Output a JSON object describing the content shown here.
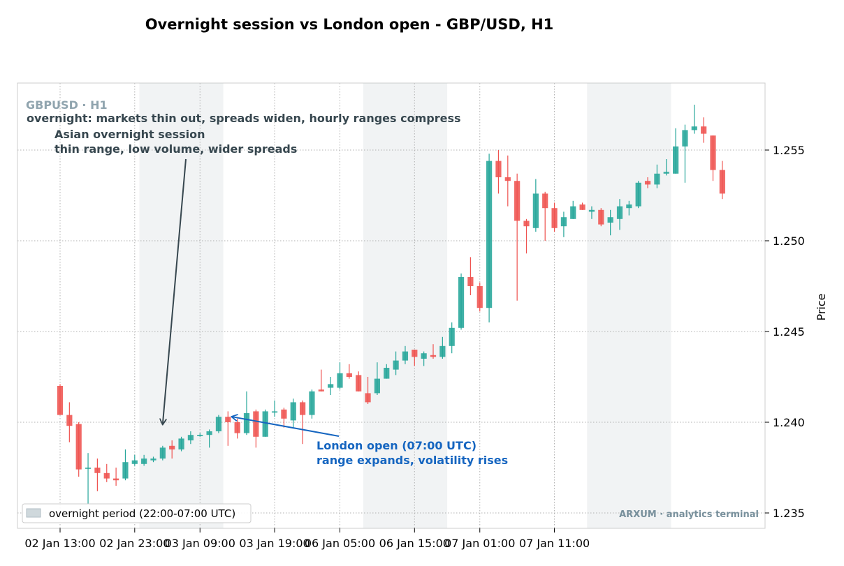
{
  "chart_data": {
    "type": "candlestick",
    "title": "Overnight session vs London open - GBP/USD, H1",
    "symbol_label": "GBPUSD · H1",
    "subtitle_note": "overnight: markets thin out, spreads widen, hourly ranges compress",
    "ylabel": "Price",
    "ylim": [
      1.2342,
      1.2584
    ],
    "yticks": [
      {
        "value": 1.235,
        "label": "1.235"
      },
      {
        "value": 1.24,
        "label": "1.240"
      },
      {
        "value": 1.245,
        "label": "1.245"
      },
      {
        "value": 1.25,
        "label": "1.250"
      },
      {
        "value": 1.255,
        "label": "1.255"
      }
    ],
    "xticks": [
      {
        "index": 0,
        "label": "02 Jan 13:00"
      },
      {
        "index": 8,
        "label": "02 Jan 23:00"
      },
      {
        "index": 15,
        "label": "03 Jan 09:00"
      },
      {
        "index": 23,
        "label": "03 Jan 19:00"
      },
      {
        "index": 30,
        "label": "06 Jan 05:00"
      },
      {
        "index": 38,
        "label": "06 Jan 15:00"
      },
      {
        "index": 45,
        "label": "07 Jan 01:00"
      },
      {
        "index": 53,
        "label": "07 Jan 11:00"
      }
    ],
    "grid": true,
    "colors": {
      "up": "#26a69a",
      "down": "#ef5350",
      "overnight": "#cfd8dc",
      "annotation_dark": "#37474f",
      "annotation_blue": "#1565c0"
    },
    "overnight_periods": [
      {
        "start": 8.5,
        "end": 17.5
      },
      {
        "start": 32.5,
        "end": 41.5
      },
      {
        "start": 56.5,
        "end": 65.5
      }
    ],
    "candles": [
      {
        "o": 1.242,
        "h": 1.2421,
        "l": 1.2404,
        "c": 1.2404
      },
      {
        "o": 1.2404,
        "h": 1.2411,
        "l": 1.2389,
        "c": 1.2398
      },
      {
        "o": 1.2399,
        "h": 1.24,
        "l": 1.237,
        "c": 1.2374
      },
      {
        "o": 1.2375,
        "h": 1.2383,
        "l": 1.2355,
        "c": 1.2375
      },
      {
        "o": 1.2375,
        "h": 1.238,
        "l": 1.2362,
        "c": 1.2372
      },
      {
        "o": 1.2372,
        "h": 1.2377,
        "l": 1.2367,
        "c": 1.2369
      },
      {
        "o": 1.2369,
        "h": 1.2375,
        "l": 1.2365,
        "c": 1.2368
      },
      {
        "o": 1.2369,
        "h": 1.2385,
        "l": 1.2368,
        "c": 1.2378
      },
      {
        "o": 1.2377,
        "h": 1.2382,
        "l": 1.2376,
        "c": 1.2379
      },
      {
        "o": 1.2377,
        "h": 1.2382,
        "l": 1.2376,
        "c": 1.238
      },
      {
        "o": 1.2379,
        "h": 1.2381,
        "l": 1.2378,
        "c": 1.238
      },
      {
        "o": 1.238,
        "h": 1.2387,
        "l": 1.2379,
        "c": 1.2386
      },
      {
        "o": 1.2387,
        "h": 1.239,
        "l": 1.238,
        "c": 1.2385
      },
      {
        "o": 1.2385,
        "h": 1.2392,
        "l": 1.2384,
        "c": 1.2391
      },
      {
        "o": 1.239,
        "h": 1.2395,
        "l": 1.2388,
        "c": 1.2393
      },
      {
        "o": 1.2393,
        "h": 1.2394,
        "l": 1.2392,
        "c": 1.2393
      },
      {
        "o": 1.2393,
        "h": 1.2396,
        "l": 1.2386,
        "c": 1.2395
      },
      {
        "o": 1.2395,
        "h": 1.2404,
        "l": 1.2394,
        "c": 1.2403
      },
      {
        "o": 1.2403,
        "h": 1.2406,
        "l": 1.2387,
        "c": 1.24
      },
      {
        "o": 1.24,
        "h": 1.2402,
        "l": 1.2391,
        "c": 1.2394
      },
      {
        "o": 1.2394,
        "h": 1.2417,
        "l": 1.2393,
        "c": 1.2405
      },
      {
        "o": 1.2406,
        "h": 1.2407,
        "l": 1.2386,
        "c": 1.2392
      },
      {
        "o": 1.2392,
        "h": 1.2407,
        "l": 1.2392,
        "c": 1.2406
      },
      {
        "o": 1.2406,
        "h": 1.2412,
        "l": 1.2403,
        "c": 1.2406
      },
      {
        "o": 1.2407,
        "h": 1.2408,
        "l": 1.2397,
        "c": 1.2402
      },
      {
        "o": 1.2401,
        "h": 1.2413,
        "l": 1.2397,
        "c": 1.2411
      },
      {
        "o": 1.2411,
        "h": 1.2412,
        "l": 1.2388,
        "c": 1.2404
      },
      {
        "o": 1.2404,
        "h": 1.2418,
        "l": 1.2402,
        "c": 1.2417
      },
      {
        "o": 1.2418,
        "h": 1.2429,
        "l": 1.2417,
        "c": 1.2417
      },
      {
        "o": 1.2419,
        "h": 1.2425,
        "l": 1.2415,
        "c": 1.2421
      },
      {
        "o": 1.2419,
        "h": 1.2433,
        "l": 1.2418,
        "c": 1.2427
      },
      {
        "o": 1.2427,
        "h": 1.2432,
        "l": 1.2424,
        "c": 1.2425
      },
      {
        "o": 1.2426,
        "h": 1.2428,
        "l": 1.2417,
        "c": 1.2417
      },
      {
        "o": 1.2416,
        "h": 1.2425,
        "l": 1.241,
        "c": 1.2411
      },
      {
        "o": 1.2416,
        "h": 1.2433,
        "l": 1.2415,
        "c": 1.2424
      },
      {
        "o": 1.2424,
        "h": 1.2432,
        "l": 1.2424,
        "c": 1.243
      },
      {
        "o": 1.2429,
        "h": 1.2439,
        "l": 1.2426,
        "c": 1.2434
      },
      {
        "o": 1.2434,
        "h": 1.2442,
        "l": 1.2432,
        "c": 1.2439
      },
      {
        "o": 1.244,
        "h": 1.244,
        "l": 1.2431,
        "c": 1.2436
      },
      {
        "o": 1.2435,
        "h": 1.2439,
        "l": 1.2431,
        "c": 1.2438
      },
      {
        "o": 1.2437,
        "h": 1.2443,
        "l": 1.2435,
        "c": 1.2436
      },
      {
        "o": 1.2436,
        "h": 1.2447,
        "l": 1.2435,
        "c": 1.2442
      },
      {
        "o": 1.2442,
        "h": 1.2455,
        "l": 1.2438,
        "c": 1.2452
      },
      {
        "o": 1.2452,
        "h": 1.2482,
        "l": 1.2451,
        "c": 1.248
      },
      {
        "o": 1.248,
        "h": 1.2491,
        "l": 1.247,
        "c": 1.2475
      },
      {
        "o": 1.2475,
        "h": 1.2477,
        "l": 1.2461,
        "c": 1.2463
      },
      {
        "o": 1.2463,
        "h": 1.2548,
        "l": 1.2455,
        "c": 1.2544
      },
      {
        "o": 1.2544,
        "h": 1.255,
        "l": 1.2526,
        "c": 1.2535
      },
      {
        "o": 1.2535,
        "h": 1.2547,
        "l": 1.2519,
        "c": 1.2533
      },
      {
        "o": 1.2533,
        "h": 1.2537,
        "l": 1.2467,
        "c": 1.2511
      },
      {
        "o": 1.2511,
        "h": 1.2512,
        "l": 1.2493,
        "c": 1.2508
      },
      {
        "o": 1.2507,
        "h": 1.2534,
        "l": 1.2505,
        "c": 1.2526
      },
      {
        "o": 1.2526,
        "h": 1.2527,
        "l": 1.25,
        "c": 1.2518
      },
      {
        "o": 1.2518,
        "h": 1.2521,
        "l": 1.2505,
        "c": 1.2507
      },
      {
        "o": 1.2508,
        "h": 1.2516,
        "l": 1.2502,
        "c": 1.2513
      },
      {
        "o": 1.2512,
        "h": 1.2522,
        "l": 1.2512,
        "c": 1.2519
      },
      {
        "o": 1.252,
        "h": 1.2521,
        "l": 1.2517,
        "c": 1.2517
      },
      {
        "o": 1.2516,
        "h": 1.2519,
        "l": 1.2512,
        "c": 1.2517
      },
      {
        "o": 1.2517,
        "h": 1.2518,
        "l": 1.2508,
        "c": 1.2509
      },
      {
        "o": 1.251,
        "h": 1.2517,
        "l": 1.2503,
        "c": 1.2513
      },
      {
        "o": 1.2512,
        "h": 1.2523,
        "l": 1.2506,
        "c": 1.2519
      },
      {
        "o": 1.2518,
        "h": 1.2522,
        "l": 1.2514,
        "c": 1.252
      },
      {
        "o": 1.2519,
        "h": 1.2533,
        "l": 1.2518,
        "c": 1.2532
      },
      {
        "o": 1.2533,
        "h": 1.2535,
        "l": 1.2529,
        "c": 1.2531
      },
      {
        "o": 1.2531,
        "h": 1.2542,
        "l": 1.2529,
        "c": 1.2537
      },
      {
        "o": 1.2537,
        "h": 1.2545,
        "l": 1.2536,
        "c": 1.2538
      },
      {
        "o": 1.2537,
        "h": 1.2562,
        "l": 1.2537,
        "c": 1.2552
      },
      {
        "o": 1.2552,
        "h": 1.2564,
        "l": 1.2532,
        "c": 1.2561
      },
      {
        "o": 1.2561,
        "h": 1.2575,
        "l": 1.2559,
        "c": 1.2563
      },
      {
        "o": 1.2563,
        "h": 1.2568,
        "l": 1.2554,
        "c": 1.2559
      },
      {
        "o": 1.2558,
        "h": 1.2558,
        "l": 1.2533,
        "c": 1.2539
      },
      {
        "o": 1.2539,
        "h": 1.2544,
        "l": 1.2523,
        "c": 1.2526
      }
    ],
    "annotations": [
      {
        "id": "asian",
        "lines": [
          "Asian overnight session",
          "thin range, low volume, wider spreads"
        ],
        "target_index": 11,
        "target_price": 1.2399
      },
      {
        "id": "london",
        "lines": [
          "London open (07:00 UTC)",
          "range expands, volatility rises"
        ],
        "target_index": 18,
        "target_price": 1.2403
      }
    ],
    "legend": {
      "position": "lower-left",
      "label": "overnight period (22:00-07:00 UTC)"
    },
    "watermark": "ARXUM · analytics terminal"
  }
}
